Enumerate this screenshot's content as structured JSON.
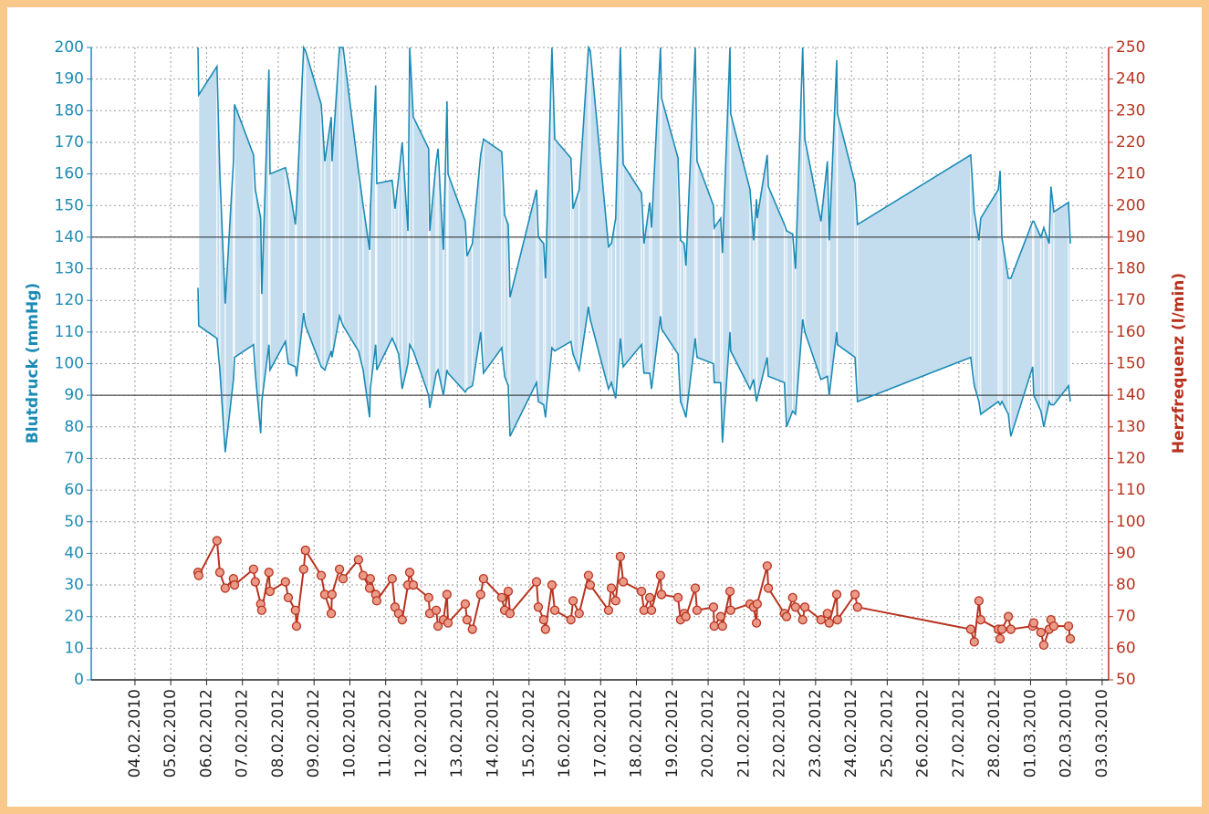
{
  "chart_data": {
    "type": "band-line",
    "y_label": "Blutdruck (mmHg)",
    "y2_label": "Herzfrequenz (l/min)",
    "xlim": [
      -1.22,
      27.18
    ],
    "xticks": [
      {
        "value": 0,
        "label": "04.02.2010"
      },
      {
        "value": 1,
        "label": "05.02.2010"
      },
      {
        "value": 2,
        "label": "06.02.2012"
      },
      {
        "value": 3,
        "label": "07.02.2012"
      },
      {
        "value": 4,
        "label": "08.02.2012"
      },
      {
        "value": 5,
        "label": "09.02.2012"
      },
      {
        "value": 6,
        "label": "10.02.2012"
      },
      {
        "value": 7,
        "label": "11.02.2012"
      },
      {
        "value": 8,
        "label": "12.02.2012"
      },
      {
        "value": 9,
        "label": "13.02.2012"
      },
      {
        "value": 10,
        "label": "14.02.2012"
      },
      {
        "value": 11,
        "label": "15.02.2012"
      },
      {
        "value": 12,
        "label": "16.02.2012"
      },
      {
        "value": 13,
        "label": "17.02.2012"
      },
      {
        "value": 14,
        "label": "18.02.2012"
      },
      {
        "value": 15,
        "label": "19.02.2012"
      },
      {
        "value": 16,
        "label": "20.02.2012"
      },
      {
        "value": 17,
        "label": "21.02.2012"
      },
      {
        "value": 18,
        "label": "22.02.2012"
      },
      {
        "value": 19,
        "label": "23.02.2012"
      },
      {
        "value": 20,
        "label": "24.02.2012"
      },
      {
        "value": 21,
        "label": "25.02.2012"
      },
      {
        "value": 22,
        "label": "26.02.2012"
      },
      {
        "value": 23,
        "label": "27.02.2012"
      },
      {
        "value": 24,
        "label": "28.02.2012"
      },
      {
        "value": 25,
        "label": "01.03.2010"
      },
      {
        "value": 26,
        "label": "02.03.2010"
      },
      {
        "value": 27,
        "label": "03.03.2010"
      }
    ],
    "ylim": [
      0,
      200
    ],
    "yticks": [
      0,
      10,
      20,
      30,
      40,
      50,
      60,
      70,
      80,
      90,
      100,
      110,
      120,
      130,
      140,
      150,
      160,
      170,
      180,
      190,
      200
    ],
    "y2lim": [
      50,
      250
    ],
    "y2ticks": [
      50,
      60,
      70,
      80,
      90,
      100,
      110,
      120,
      130,
      140,
      150,
      160,
      170,
      180,
      190,
      200,
      210,
      220,
      230,
      240,
      250
    ],
    "grid": true,
    "hlines": [
      140,
      90
    ],
    "band_color": "#c3ddef",
    "x": [
      1.76,
      1.78,
      2.29,
      2.37,
      2.52,
      2.75,
      2.78,
      3.31,
      3.36,
      3.51,
      3.54,
      3.74,
      3.77,
      4.2,
      4.28,
      4.48,
      4.51,
      4.71,
      4.76,
      5.2,
      5.3,
      5.48,
      5.5,
      5.71,
      5.81,
      6.24,
      6.37,
      6.55,
      6.57,
      6.72,
      6.75,
      7.18,
      7.26,
      7.36,
      7.46,
      7.62,
      7.67,
      7.77,
      8.2,
      8.23,
      8.41,
      8.46,
      8.61,
      8.71,
      8.74,
      9.22,
      9.27,
      9.42,
      9.65,
      9.73,
      10.24,
      10.32,
      10.42,
      10.47,
      11.21,
      11.26,
      11.41,
      11.46,
      11.64,
      11.72,
      12.17,
      12.23,
      12.4,
      12.66,
      12.71,
      13.22,
      13.3,
      13.42,
      13.55,
      13.63,
      14.14,
      14.21,
      14.37,
      14.42,
      14.67,
      14.7,
      15.16,
      15.23,
      15.33,
      15.38,
      15.64,
      15.69,
      16.15,
      16.17,
      16.35,
      16.4,
      16.61,
      16.63,
      17.17,
      17.27,
      17.35,
      17.37,
      17.65,
      17.68,
      18.13,
      18.19,
      18.36,
      18.44,
      18.64,
      18.7,
      19.15,
      19.33,
      19.38,
      19.59,
      19.61,
      20.1,
      20.17,
      23.33,
      23.43,
      23.56,
      23.61,
      24.1,
      24.15,
      24.2,
      24.38,
      24.45,
      25.06,
      25.09,
      25.29,
      25.37,
      25.52,
      25.57,
      25.65,
      26.06,
      26.11
    ],
    "series": [
      {
        "color": "#1b8bb5",
        "axis": "y",
        "values": [
          200,
          185,
          194,
          160,
          119,
          164,
          182,
          166,
          155,
          146,
          122,
          193,
          160,
          162,
          158,
          144,
          150,
          200,
          199,
          182,
          164,
          178,
          164,
          200,
          200,
          161,
          150,
          136,
          148,
          188,
          157,
          158,
          149,
          159,
          170,
          142,
          200,
          178,
          168,
          142,
          164,
          168,
          136,
          183,
          160,
          145,
          134,
          138,
          166,
          171,
          167,
          147,
          144,
          121,
          155,
          140,
          138,
          127,
          200,
          171,
          165,
          149,
          155,
          200,
          199,
          137,
          138,
          146,
          200,
          163,
          154,
          138,
          151,
          143,
          200,
          184,
          165,
          139,
          138,
          131,
          200,
          164,
          150,
          143,
          146,
          135,
          200,
          179,
          155,
          139,
          152,
          146,
          166,
          156,
          144,
          142,
          141,
          130,
          200,
          171,
          145,
          164,
          139,
          196,
          179,
          157,
          144,
          166,
          148,
          139,
          146,
          155,
          161,
          140,
          127,
          127,
          145,
          145,
          140,
          143,
          138,
          156,
          148,
          151,
          138
        ]
      },
      {
        "color": "#1b8bb5",
        "axis": "y",
        "values": [
          124,
          112,
          108,
          98,
          72,
          95,
          102,
          106,
          97,
          78,
          88,
          106,
          98,
          107,
          100,
          99,
          96,
          116,
          112,
          99,
          98,
          104,
          102,
          115,
          112,
          104,
          98,
          83,
          92,
          106,
          98,
          108,
          106,
          103,
          92,
          100,
          106,
          104,
          90,
          86,
          97,
          98,
          90,
          98,
          97,
          91,
          92,
          93,
          110,
          97,
          105,
          96,
          93,
          77,
          94,
          88,
          87,
          83,
          105,
          104,
          107,
          103,
          98,
          118,
          114,
          92,
          94,
          89,
          108,
          99,
          106,
          97,
          97,
          92,
          115,
          111,
          103,
          88,
          85,
          83,
          108,
          102,
          100,
          94,
          94,
          75,
          110,
          104,
          92,
          95,
          88,
          89,
          102,
          96,
          94,
          80,
          85,
          84,
          114,
          110,
          95,
          96,
          90,
          110,
          106,
          102,
          88,
          102,
          93,
          88,
          84,
          88,
          87,
          88,
          84,
          77,
          99,
          90,
          85,
          80,
          88,
          87,
          87,
          93,
          88
        ]
      },
      {
        "color": "#b8331f",
        "axis": "y2",
        "values": [
          84,
          83,
          94,
          84,
          79,
          82,
          80,
          85,
          81,
          74,
          72,
          84,
          78,
          81,
          76,
          72,
          67,
          85,
          91,
          83,
          77,
          71,
          77,
          85,
          82,
          88,
          83,
          79,
          82,
          77,
          75,
          82,
          73,
          71,
          69,
          80,
          84,
          80,
          76,
          71,
          72,
          67,
          69,
          77,
          68,
          74,
          69,
          66,
          77,
          82,
          76,
          72,
          78,
          71,
          81,
          73,
          69,
          66,
          80,
          72,
          69,
          75,
          71,
          83,
          80,
          72,
          79,
          75,
          89,
          81,
          78,
          72,
          76,
          72,
          83,
          77,
          76,
          69,
          71,
          70,
          79,
          72,
          73,
          67,
          70,
          67,
          78,
          72,
          74,
          73,
          68,
          74,
          86,
          79,
          71,
          70,
          76,
          73,
          69,
          73,
          69,
          71,
          68,
          77,
          69,
          77,
          73,
          66,
          62,
          75,
          69,
          66,
          63,
          66,
          70,
          66,
          67,
          68,
          65,
          61,
          66,
          69,
          67,
          67,
          63
        ]
      }
    ]
  }
}
